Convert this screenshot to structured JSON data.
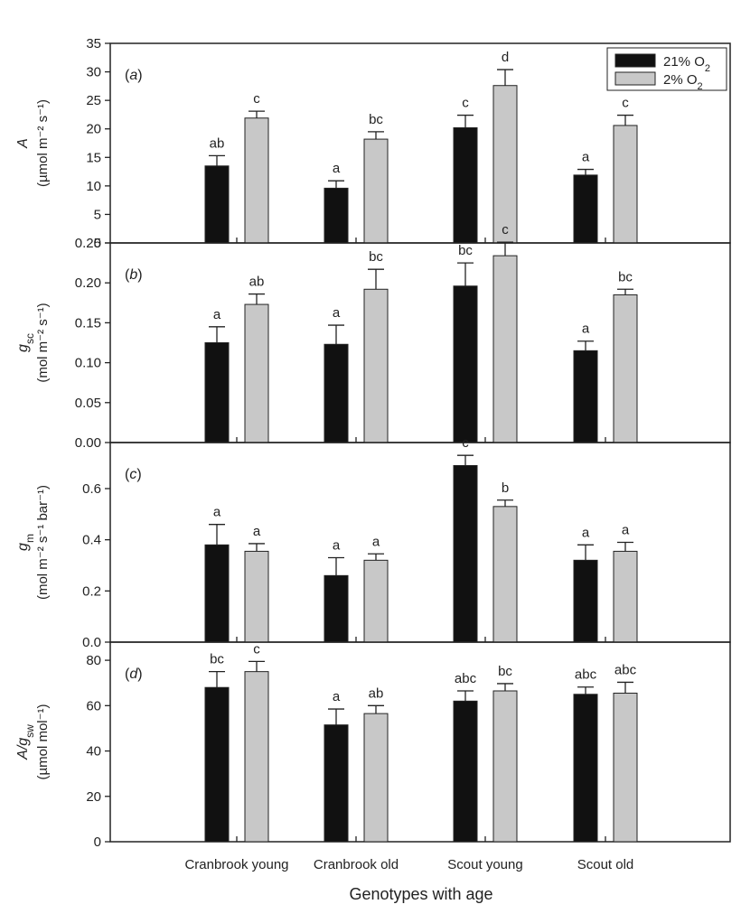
{
  "legend": [
    {
      "base": "21% O",
      "sub": "2",
      "color": "#111111"
    },
    {
      "base": "2% O",
      "sub": "2",
      "color": "#c8c8c8"
    }
  ],
  "chart_data": {
    "type": "bar",
    "categories": [
      "Cranbrook young",
      "Cranbrook old",
      "Scout young",
      "Scout old"
    ],
    "xlabel": "Genotypes with age",
    "legend_position": "top-right",
    "panels": [
      {
        "tag_open": "(",
        "tag_letter": "a",
        "tag_close": ")",
        "ylabel": {
          "line1_base": "A",
          "line1_sub": "",
          "line2": "(µmol m⁻² s⁻¹)"
        },
        "ylim": [
          0,
          35
        ],
        "yticks": [
          "0",
          "5",
          "10",
          "15",
          "20",
          "25",
          "30",
          "35"
        ],
        "series": [
          {
            "name": "21% O2",
            "values": [
              13.5,
              9.6,
              20.2,
              11.9
            ],
            "errors": [
              1.8,
              1.3,
              2.2,
              1.0
            ]
          },
          {
            "name": "2% O2",
            "values": [
              21.9,
              18.2,
              27.6,
              20.6
            ],
            "errors": [
              1.2,
              1.3,
              2.8,
              1.8
            ]
          }
        ],
        "letters": [
          [
            "ab",
            "a",
            "c",
            "a"
          ],
          [
            "c",
            "bc",
            "d",
            "c"
          ]
        ]
      },
      {
        "tag_open": "(",
        "tag_letter": "b",
        "tag_close": ")",
        "ylabel": {
          "line1_base": "g",
          "line1_sub": "sc",
          "line2": "(mol m⁻² s⁻¹)"
        },
        "ylim": [
          0,
          0.25
        ],
        "yticks": [
          "0.00",
          "0.05",
          "0.10",
          "0.15",
          "0.20",
          "0.25"
        ],
        "series": [
          {
            "name": "21% O2",
            "values": [
              0.125,
              0.123,
              0.196,
              0.115
            ],
            "errors": [
              0.02,
              0.024,
              0.029,
              0.012
            ]
          },
          {
            "name": "2% O2",
            "values": [
              0.173,
              0.192,
              0.234,
              0.185
            ],
            "errors": [
              0.013,
              0.025,
              0.017,
              0.007
            ]
          }
        ],
        "letters": [
          [
            "a",
            "a",
            "bc",
            "a"
          ],
          [
            "ab",
            "bc",
            "c",
            "bc"
          ]
        ]
      },
      {
        "tag_open": "(",
        "tag_letter": "c",
        "tag_close": ")",
        "ylabel": {
          "line1_base": "g",
          "line1_sub": "m",
          "line2": "(mol m⁻² s⁻¹ bar⁻¹)"
        },
        "ylim": [
          0,
          0.78
        ],
        "yticks": [
          "0.0",
          "0.2",
          "0.4",
          "0.6"
        ],
        "series": [
          {
            "name": "21% O2",
            "values": [
              0.38,
              0.26,
              0.69,
              0.32
            ],
            "errors": [
              0.08,
              0.07,
              0.04,
              0.06
            ]
          },
          {
            "name": "2% O2",
            "values": [
              0.355,
              0.32,
              0.53,
              0.355
            ],
            "errors": [
              0.03,
              0.025,
              0.025,
              0.035
            ]
          }
        ],
        "letters": [
          [
            "a",
            "a",
            "c",
            "a"
          ],
          [
            "a",
            "a",
            "b",
            "a"
          ]
        ]
      },
      {
        "tag_open": "(",
        "tag_letter": "d",
        "tag_close": ")",
        "ylabel": {
          "line1_base": "A/g",
          "line1_sub": "sw",
          "line2": "(µmol mol⁻¹)"
        },
        "ylim": [
          0,
          88
        ],
        "yticks": [
          "0",
          "20",
          "40",
          "60",
          "80"
        ],
        "series": [
          {
            "name": "21% O2",
            "values": [
              68,
              51.5,
              62,
              65
            ],
            "errors": [
              7,
              7,
              4.5,
              3.2
            ]
          },
          {
            "name": "2% O2",
            "values": [
              75,
              56.5,
              66.5,
              65.5
            ],
            "errors": [
              4.5,
              3.5,
              3.2,
              4.8
            ]
          }
        ],
        "letters": [
          [
            "bc",
            "a",
            "abc",
            "abc"
          ],
          [
            "c",
            "ab",
            "bc",
            "abc"
          ]
        ]
      }
    ]
  }
}
